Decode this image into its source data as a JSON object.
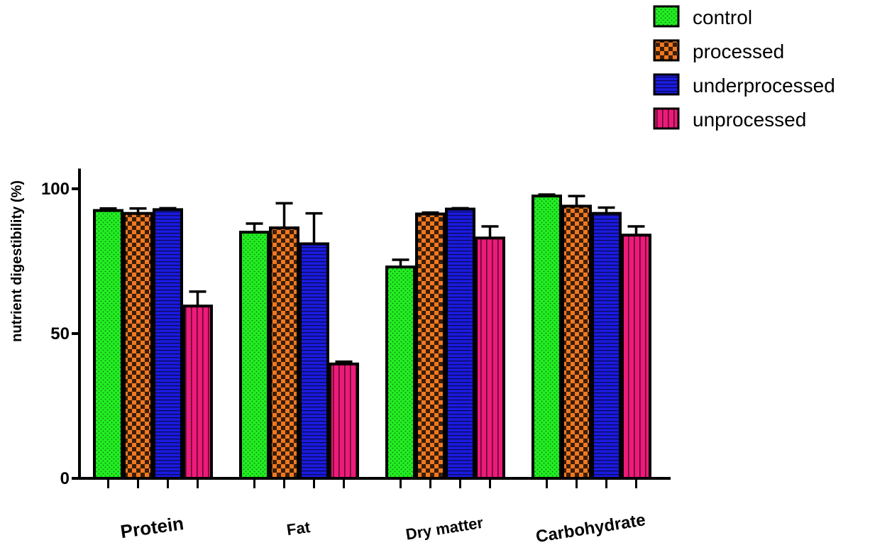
{
  "chart_data": {
    "type": "bar",
    "title": "",
    "xlabel": "",
    "ylabel": "nutrient digestibility (%)",
    "ylim": [
      0,
      107
    ],
    "yticks": [
      0,
      50,
      100
    ],
    "grid": false,
    "legend_position": "top-right",
    "categories": [
      "Protein",
      "Fat",
      "Dry matter",
      "Carbohydrate"
    ],
    "series": [
      {
        "name": "control",
        "color": "#22ee22",
        "pattern": "dots",
        "values": [
          92.5,
          85.0,
          73.0,
          97.5
        ],
        "errors": [
          0.7,
          3.0,
          2.5,
          0.5
        ]
      },
      {
        "name": "processed",
        "color": "#f07822",
        "pattern": "checker",
        "values": [
          91.5,
          86.5,
          91.3,
          94.0
        ],
        "errors": [
          1.7,
          8.5,
          0.5,
          3.5
        ]
      },
      {
        "name": "underprocessed",
        "color": "#1a1ae0",
        "pattern": "horizontal-lines",
        "values": [
          92.8,
          81.0,
          93.0,
          91.5
        ],
        "errors": [
          0.5,
          10.5,
          0.3,
          2.0
        ]
      },
      {
        "name": "unprocessed",
        "color": "#ee1a7a",
        "pattern": "vertical-lines",
        "values": [
          59.5,
          39.5,
          83.0,
          84.0
        ],
        "errors": [
          5.0,
          0.8,
          4.0,
          3.0
        ]
      }
    ]
  }
}
